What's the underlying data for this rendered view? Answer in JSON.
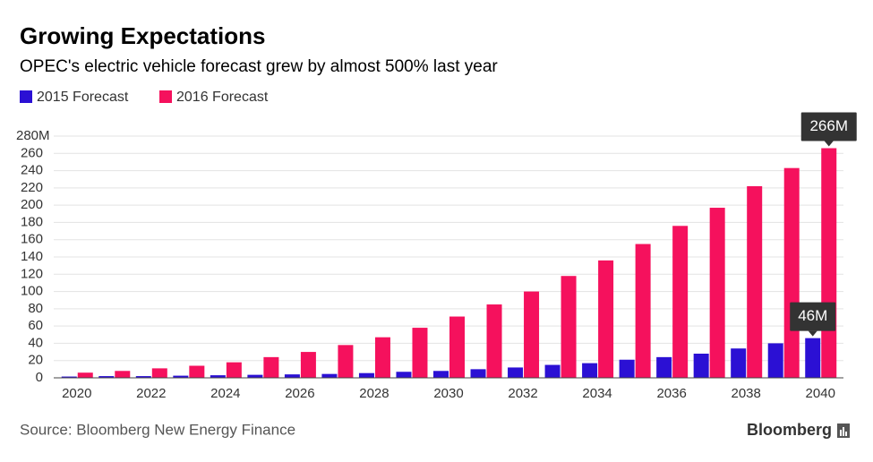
{
  "chart_data": {
    "type": "bar",
    "title": "Growing Expectations",
    "subtitle": "OPEC's electric vehicle forecast grew by almost 500% last year",
    "source": "Source: Bloomberg New Energy Finance",
    "brand": "Bloomberg",
    "categories": [
      "2020",
      null,
      "2022",
      null,
      "2024",
      null,
      "2026",
      null,
      "2028",
      null,
      "2030",
      null,
      "2032",
      null,
      "2034",
      null,
      "2036",
      null,
      "2038",
      null,
      "2040"
    ],
    "series": [
      {
        "name": "2015 Forecast",
        "color": "#2b10d4",
        "values": [
          1.5,
          2,
          2,
          2.5,
          3,
          3.5,
          4,
          4.5,
          5.5,
          7,
          8,
          10,
          12,
          15,
          17,
          21,
          24,
          28,
          34,
          40,
          46
        ],
        "value_labels": [
          null,
          null,
          null,
          null,
          null,
          null,
          null,
          null,
          null,
          null,
          null,
          null,
          null,
          null,
          null,
          null,
          null,
          null,
          null,
          null,
          "46M"
        ]
      },
      {
        "name": "2016 Forecast",
        "color": "#f5115d",
        "values": [
          6,
          8,
          11,
          14,
          18,
          24,
          30,
          38,
          47,
          58,
          71,
          85,
          100,
          118,
          136,
          155,
          176,
          197,
          222,
          243,
          266
        ],
        "value_labels": [
          null,
          null,
          null,
          null,
          null,
          null,
          null,
          null,
          null,
          null,
          null,
          null,
          null,
          null,
          null,
          null,
          null,
          null,
          null,
          null,
          "266M"
        ]
      }
    ],
    "ylim": [
      0,
      280
    ],
    "yticks": [
      0,
      20,
      40,
      60,
      80,
      100,
      120,
      140,
      160,
      180,
      200,
      220,
      240,
      260,
      {
        "value": 280,
        "label": "280M"
      }
    ],
    "grid": true,
    "legend": "top-left"
  }
}
